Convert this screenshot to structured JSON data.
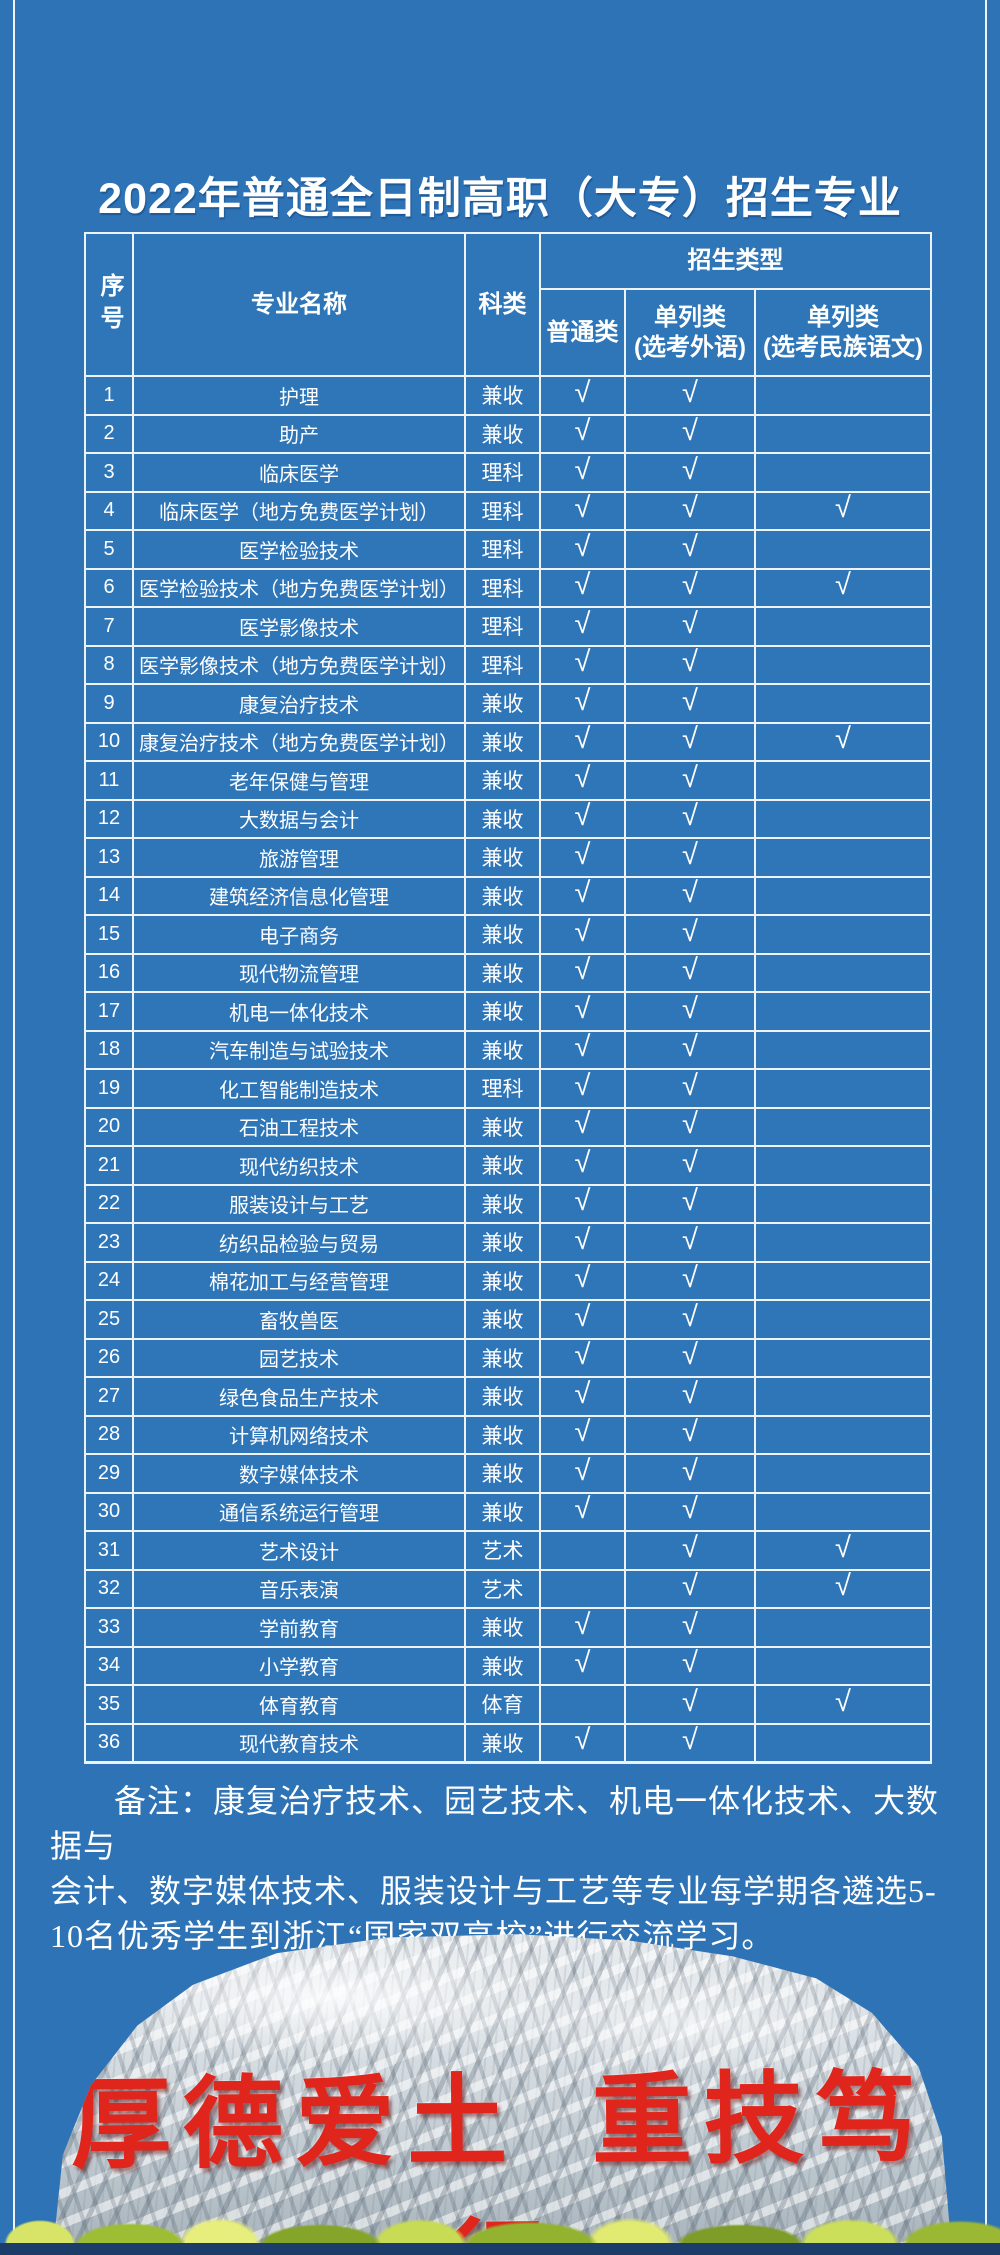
{
  "title": "2022年普通全日制高职（大专）招生专业",
  "colors": {
    "background": "#2D73B6",
    "table_lines": "#EDF2F5",
    "bottom_band": "#1C3C6A",
    "motto_red": "#E0251C",
    "stone_gray": "#D4DBE0",
    "grass_green": "#9DBD34"
  },
  "table": {
    "header": {
      "no": "序号",
      "major": "专业名称",
      "category": "科类",
      "enroll_type": "招生类型",
      "types": [
        "普通类",
        "单列类\n(选考外语)",
        "单列类\n(选考民族语文)"
      ]
    },
    "check_mark": "√",
    "rows": [
      {
        "no": "1",
        "major": "护理",
        "category": "兼收",
        "general": true,
        "foreign_lang": true,
        "ethnic_lang": false
      },
      {
        "no": "2",
        "major": "助产",
        "category": "兼收",
        "general": true,
        "foreign_lang": true,
        "ethnic_lang": false
      },
      {
        "no": "3",
        "major": "临床医学",
        "category": "理科",
        "general": true,
        "foreign_lang": true,
        "ethnic_lang": false
      },
      {
        "no": "4",
        "major": "临床医学（地方免费医学计划）",
        "category": "理科",
        "general": true,
        "foreign_lang": true,
        "ethnic_lang": true
      },
      {
        "no": "5",
        "major": "医学检验技术",
        "category": "理科",
        "general": true,
        "foreign_lang": true,
        "ethnic_lang": false
      },
      {
        "no": "6",
        "major": "医学检验技术（地方免费医学计划）",
        "category": "理科",
        "general": true,
        "foreign_lang": true,
        "ethnic_lang": true
      },
      {
        "no": "7",
        "major": "医学影像技术",
        "category": "理科",
        "general": true,
        "foreign_lang": true,
        "ethnic_lang": false
      },
      {
        "no": "8",
        "major": "医学影像技术（地方免费医学计划）",
        "category": "理科",
        "general": true,
        "foreign_lang": true,
        "ethnic_lang": false
      },
      {
        "no": "9",
        "major": "康复治疗技术",
        "category": "兼收",
        "general": true,
        "foreign_lang": true,
        "ethnic_lang": false
      },
      {
        "no": "10",
        "major": "康复治疗技术（地方免费医学计划）",
        "category": "兼收",
        "general": true,
        "foreign_lang": true,
        "ethnic_lang": true
      },
      {
        "no": "11",
        "major": "老年保健与管理",
        "category": "兼收",
        "general": true,
        "foreign_lang": true,
        "ethnic_lang": false
      },
      {
        "no": "12",
        "major": "大数据与会计",
        "category": "兼收",
        "general": true,
        "foreign_lang": true,
        "ethnic_lang": false
      },
      {
        "no": "13",
        "major": "旅游管理",
        "category": "兼收",
        "general": true,
        "foreign_lang": true,
        "ethnic_lang": false
      },
      {
        "no": "14",
        "major": "建筑经济信息化管理",
        "category": "兼收",
        "general": true,
        "foreign_lang": true,
        "ethnic_lang": false
      },
      {
        "no": "15",
        "major": "电子商务",
        "category": "兼收",
        "general": true,
        "foreign_lang": true,
        "ethnic_lang": false
      },
      {
        "no": "16",
        "major": "现代物流管理",
        "category": "兼收",
        "general": true,
        "foreign_lang": true,
        "ethnic_lang": false
      },
      {
        "no": "17",
        "major": "机电一体化技术",
        "category": "兼收",
        "general": true,
        "foreign_lang": true,
        "ethnic_lang": false
      },
      {
        "no": "18",
        "major": "汽车制造与试验技术",
        "category": "兼收",
        "general": true,
        "foreign_lang": true,
        "ethnic_lang": false
      },
      {
        "no": "19",
        "major": "化工智能制造技术",
        "category": "理科",
        "general": true,
        "foreign_lang": true,
        "ethnic_lang": false
      },
      {
        "no": "20",
        "major": "石油工程技术",
        "category": "兼收",
        "general": true,
        "foreign_lang": true,
        "ethnic_lang": false
      },
      {
        "no": "21",
        "major": "现代纺织技术",
        "category": "兼收",
        "general": true,
        "foreign_lang": true,
        "ethnic_lang": false
      },
      {
        "no": "22",
        "major": "服装设计与工艺",
        "category": "兼收",
        "general": true,
        "foreign_lang": true,
        "ethnic_lang": false
      },
      {
        "no": "23",
        "major": "纺织品检验与贸易",
        "category": "兼收",
        "general": true,
        "foreign_lang": true,
        "ethnic_lang": false
      },
      {
        "no": "24",
        "major": "棉花加工与经营管理",
        "category": "兼收",
        "general": true,
        "foreign_lang": true,
        "ethnic_lang": false
      },
      {
        "no": "25",
        "major": "畜牧兽医",
        "category": "兼收",
        "general": true,
        "foreign_lang": true,
        "ethnic_lang": false
      },
      {
        "no": "26",
        "major": "园艺技术",
        "category": "兼收",
        "general": true,
        "foreign_lang": true,
        "ethnic_lang": false
      },
      {
        "no": "27",
        "major": "绿色食品生产技术",
        "category": "兼收",
        "general": true,
        "foreign_lang": true,
        "ethnic_lang": false
      },
      {
        "no": "28",
        "major": "计算机网络技术",
        "category": "兼收",
        "general": true,
        "foreign_lang": true,
        "ethnic_lang": false
      },
      {
        "no": "29",
        "major": "数字媒体技术",
        "category": "兼收",
        "general": true,
        "foreign_lang": true,
        "ethnic_lang": false
      },
      {
        "no": "30",
        "major": "通信系统运行管理",
        "category": "兼收",
        "general": true,
        "foreign_lang": true,
        "ethnic_lang": false
      },
      {
        "no": "31",
        "major": "艺术设计",
        "category": "艺术",
        "general": false,
        "foreign_lang": true,
        "ethnic_lang": true
      },
      {
        "no": "32",
        "major": "音乐表演",
        "category": "艺术",
        "general": false,
        "foreign_lang": true,
        "ethnic_lang": true
      },
      {
        "no": "33",
        "major": "学前教育",
        "category": "兼收",
        "general": true,
        "foreign_lang": true,
        "ethnic_lang": false
      },
      {
        "no": "34",
        "major": "小学教育",
        "category": "兼收",
        "general": true,
        "foreign_lang": true,
        "ethnic_lang": false
      },
      {
        "no": "35",
        "major": "体育教育",
        "category": "体育",
        "general": false,
        "foreign_lang": true,
        "ethnic_lang": true
      },
      {
        "no": "36",
        "major": "现代教育技术",
        "category": "兼收",
        "general": true,
        "foreign_lang": true,
        "ethnic_lang": false
      }
    ]
  },
  "note": {
    "lines": [
      "备注：康复治疗技术、园艺技术、机电一体化技术、大数据与",
      "会计、数字媒体技术、服装设计与工艺等专业每学期各遴选5-",
      "10名优秀学生到浙江“国家双高校”进行交流学习。"
    ]
  },
  "stone": {
    "motto": "厚德爱土 重技笃行"
  }
}
